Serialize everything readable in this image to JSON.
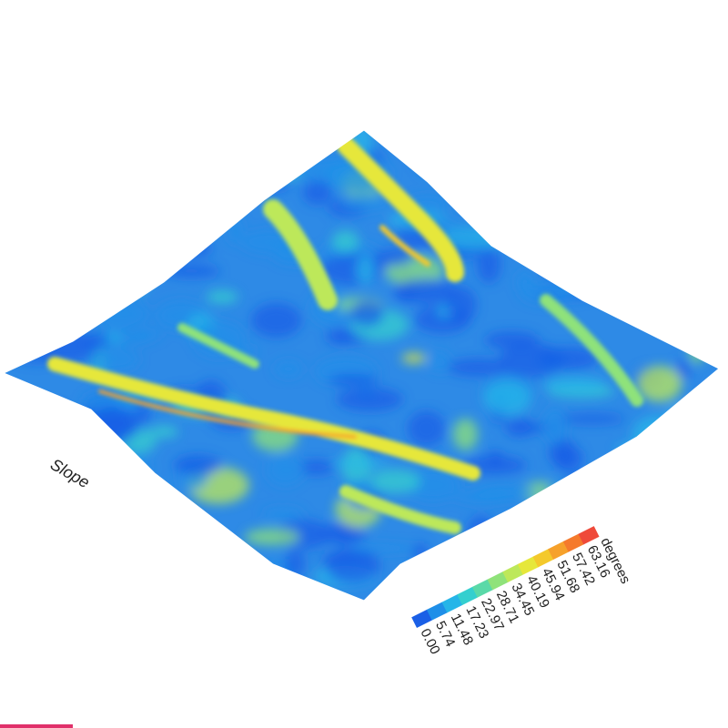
{
  "chart_data": {
    "type": "heatmap",
    "title": "Slope",
    "colorbar": {
      "unit": "degrees",
      "ticks": [
        "0.00",
        "5.74",
        "11.48",
        "17.23",
        "22.97",
        "28.71",
        "34.45",
        "40.19",
        "45.94",
        "51.68",
        "57.42",
        "63.16"
      ],
      "colors": [
        "#1a5fe6",
        "#1f8fe8",
        "#26b5e8",
        "#34cfcf",
        "#5ad9a8",
        "#8fe27a",
        "#bde85a",
        "#e6e73a",
        "#f4c92c",
        "#f6a12b",
        "#f57a2c",
        "#ef4a3a"
      ],
      "range": [
        0,
        63.16
      ]
    },
    "surface": "slope-shaded terrain, mostly 0–30 degrees with ridge bands up to ~60 degrees"
  },
  "ui": {
    "accent_color": "#e0306a"
  }
}
